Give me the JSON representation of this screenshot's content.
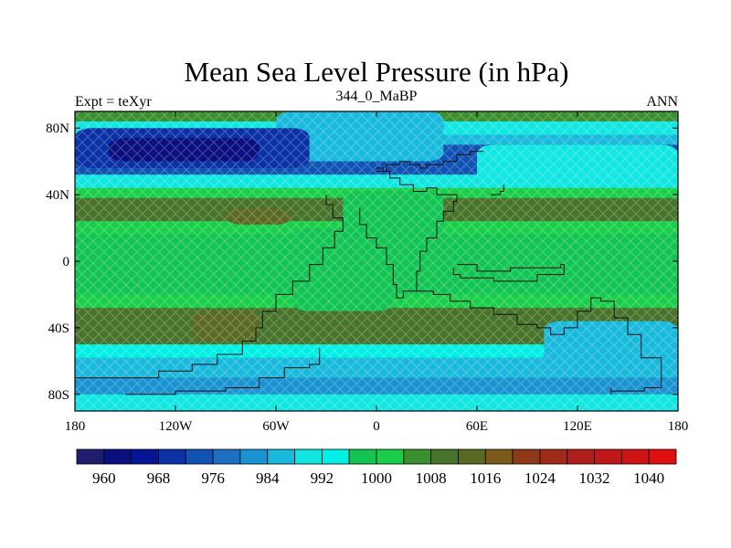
{
  "chart_data": {
    "type": "heatmap",
    "title": "Mean Sea Level Pressure (in hPa)",
    "subtitle_left": "Expt = teXyr",
    "subtitle_center": "344_0_MaBP",
    "subtitle_right": "ANN",
    "units": "hPa",
    "xlim": [
      -180,
      180
    ],
    "ylim": [
      -90,
      90
    ],
    "x_ticks": [
      {
        "value": -180,
        "label": "180"
      },
      {
        "value": -120,
        "label": "120W"
      },
      {
        "value": -60,
        "label": "60W"
      },
      {
        "value": 0,
        "label": "0"
      },
      {
        "value": 60,
        "label": "60E"
      },
      {
        "value": 120,
        "label": "120E"
      },
      {
        "value": 180,
        "label": "180"
      }
    ],
    "y_ticks": [
      {
        "value": 80,
        "label": "80N"
      },
      {
        "value": 40,
        "label": "40N"
      },
      {
        "value": 0,
        "label": "0"
      },
      {
        "value": -40,
        "label": "40S"
      },
      {
        "value": -80,
        "label": "80S"
      }
    ],
    "colorbar": {
      "min": 956,
      "max": 1044,
      "step": 4,
      "label_values": [
        960,
        968,
        976,
        984,
        992,
        1000,
        1008,
        1016,
        1024,
        1032,
        1040
      ],
      "colors": [
        "#1f1e6e",
        "#0a0e7e",
        "#061496",
        "#0a32a6",
        "#1053b4",
        "#1c6fc2",
        "#1a93d2",
        "#18b9dc",
        "#10e6e2",
        "#00f0e6",
        "#12c552",
        "#19cf4a",
        "#3a8f2e",
        "#48732a",
        "#5a6a24",
        "#7b5a1c",
        "#8e3a1a",
        "#a02a18",
        "#b01e1a",
        "#c01818",
        "#d01414",
        "#e01010"
      ]
    },
    "bands": [
      {
        "lat_from": 90,
        "lat_to": 84,
        "value": 1004
      },
      {
        "lat_from": 84,
        "lat_to": 76,
        "value": 990
      },
      {
        "lat_from": 76,
        "lat_to": 70,
        "value": 984
      },
      {
        "lat_from": 70,
        "lat_to": 52,
        "value": 974
      },
      {
        "lat_from": 52,
        "lat_to": 44,
        "value": 988
      },
      {
        "lat_from": 44,
        "lat_to": 38,
        "value": 1000
      },
      {
        "lat_from": 38,
        "lat_to": 24,
        "value": 1010
      },
      {
        "lat_from": 24,
        "lat_to": 16,
        "value": 1000
      },
      {
        "lat_from": 16,
        "lat_to": 8,
        "value": 996
      },
      {
        "lat_from": 8,
        "lat_to": -8,
        "value": 998
      },
      {
        "lat_from": -8,
        "lat_to": -20,
        "value": 996
      },
      {
        "lat_from": -20,
        "lat_to": -28,
        "value": 1000
      },
      {
        "lat_from": -28,
        "lat_to": -50,
        "value": 1010
      },
      {
        "lat_from": -50,
        "lat_to": -58,
        "value": 994
      },
      {
        "lat_from": -58,
        "lat_to": -70,
        "value": 986
      },
      {
        "lat_from": -70,
        "lat_to": -80,
        "value": 982
      },
      {
        "lat_from": -80,
        "lat_to": -90,
        "value": 990
      }
    ],
    "patches": [
      {
        "lon": [
          -60,
          40
        ],
        "lat": [
          90,
          60
        ],
        "value": 984
      },
      {
        "lon": [
          60,
          180
        ],
        "lat": [
          70,
          46
        ],
        "value": 990
      },
      {
        "lon": [
          -180,
          -40
        ],
        "lat": [
          80,
          56
        ],
        "value": 968
      },
      {
        "lon": [
          -160,
          -70
        ],
        "lat": [
          74,
          60
        ],
        "value": 962
      },
      {
        "lon": [
          -20,
          40
        ],
        "lat": [
          42,
          14
        ],
        "value": 998
      },
      {
        "lon": [
          -50,
          10
        ],
        "lat": [
          20,
          -30
        ],
        "value": 998
      },
      {
        "lon": [
          100,
          180
        ],
        "lat": [
          -36,
          -64
        ],
        "value": 986
      },
      {
        "lon": [
          -110,
          -70
        ],
        "lat": [
          -30,
          -48
        ],
        "value": 1014
      },
      {
        "lon": [
          -90,
          -50
        ],
        "lat": [
          32,
          22
        ],
        "value": 1014
      }
    ],
    "coastlines": [
      [
        [
          -180,
          -70
        ],
        [
          -150,
          -70
        ],
        [
          -130,
          -66
        ],
        [
          -110,
          -62
        ],
        [
          -95,
          -56
        ],
        [
          -80,
          -48
        ],
        [
          -72,
          -40
        ],
        [
          -68,
          -30
        ],
        [
          -60,
          -20
        ],
        [
          -50,
          -12
        ],
        [
          -40,
          -2
        ],
        [
          -32,
          8
        ],
        [
          -25,
          18
        ],
        [
          -20,
          26
        ],
        [
          -26,
          34
        ],
        [
          -30,
          40
        ]
      ],
      [
        [
          0,
          56
        ],
        [
          4,
          54
        ],
        [
          8,
          50
        ],
        [
          14,
          46
        ],
        [
          22,
          42
        ],
        [
          30,
          44
        ],
        [
          36,
          40
        ],
        [
          44,
          40
        ],
        [
          48,
          36
        ],
        [
          46,
          30
        ],
        [
          40,
          24
        ],
        [
          36,
          14
        ],
        [
          30,
          6
        ],
        [
          26,
          -6
        ],
        [
          24,
          -18
        ],
        [
          16,
          -22
        ],
        [
          12,
          -14
        ],
        [
          10,
          -2
        ],
        [
          6,
          8
        ],
        [
          0,
          14
        ],
        [
          -6,
          22
        ],
        [
          -10,
          32
        ]
      ],
      [
        [
          0,
          54
        ],
        [
          6,
          58
        ],
        [
          14,
          60
        ],
        [
          20,
          58
        ],
        [
          26,
          56
        ],
        [
          30,
          58
        ],
        [
          40,
          60
        ],
        [
          48,
          64
        ],
        [
          56,
          66
        ],
        [
          64,
          66
        ]
      ],
      [
        [
          48,
          -2
        ],
        [
          60,
          -6
        ],
        [
          80,
          -4
        ],
        [
          96,
          -4
        ],
        [
          110,
          -2
        ],
        [
          112,
          -8
        ],
        [
          96,
          -12
        ],
        [
          70,
          -10
        ],
        [
          50,
          -8
        ],
        [
          46,
          -4
        ]
      ],
      [
        [
          24,
          -18
        ],
        [
          34,
          -20
        ],
        [
          44,
          -24
        ],
        [
          56,
          -28
        ],
        [
          70,
          -32
        ],
        [
          84,
          -38
        ],
        [
          96,
          -40
        ],
        [
          104,
          -44
        ],
        [
          112,
          -40
        ],
        [
          120,
          -30
        ],
        [
          128,
          -22
        ],
        [
          134,
          -24
        ],
        [
          142,
          -34
        ],
        [
          150,
          -44
        ],
        [
          158,
          -58
        ],
        [
          170,
          -76
        ],
        [
          160,
          -78
        ],
        [
          140,
          -76
        ],
        [
          140,
          -80
        ]
      ],
      [
        [
          -150,
          -80
        ],
        [
          -120,
          -78
        ],
        [
          -90,
          -76
        ],
        [
          -70,
          -70
        ],
        [
          -55,
          -64
        ],
        [
          -40,
          -62
        ],
        [
          -34,
          -58
        ],
        [
          -34,
          -52
        ]
      ],
      [
        [
          68,
          40
        ],
        [
          74,
          42
        ],
        [
          76,
          46
        ]
      ]
    ]
  }
}
